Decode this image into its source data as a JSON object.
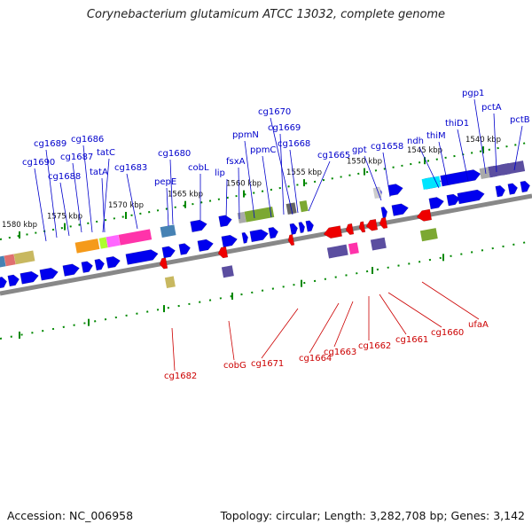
{
  "title": "Corynebacterium glutamicum ATCC 13032, complete genome",
  "footer": {
    "accession": "Accession: NC_006958",
    "summary": "Topology: circular; Length: 3,282,708 bp; Genes: 3,142"
  },
  "colors": {
    "forward_label": "#0000cc",
    "reverse_label": "#cc0000",
    "forward_gene": "#0000ee",
    "reverse_gene": "#ee0000",
    "tick": "#008800",
    "backbone": "#888888"
  },
  "tick_labels": [
    "1580 kbp",
    "1575 kbp",
    "1570 kbp",
    "1565 kbp",
    "1560 kbp",
    "1555 kbp",
    "1550 kbp",
    "1545 kbp",
    "1540 kbp"
  ],
  "forward_labels": [
    "cg1690",
    "cg1689",
    "cg1688",
    "cg1687",
    "cg1686",
    "tatC",
    "tatA",
    "cg1683",
    "cg1680",
    "pepE",
    "cobL",
    "lip",
    "fsxA",
    "ppmN",
    "ppmC",
    "cg1670",
    "cg1669",
    "cg1668",
    "cg1665",
    "gpt",
    "cg1658",
    "ndh",
    "thiM",
    "thiD1",
    "pgp1",
    "pctA",
    "pctB"
  ],
  "reverse_labels": [
    "cg1682",
    "cobG",
    "cg1671",
    "cg1664",
    "cg1663",
    "cg1662",
    "cg1661",
    "cg1660",
    "ufaA"
  ]
}
